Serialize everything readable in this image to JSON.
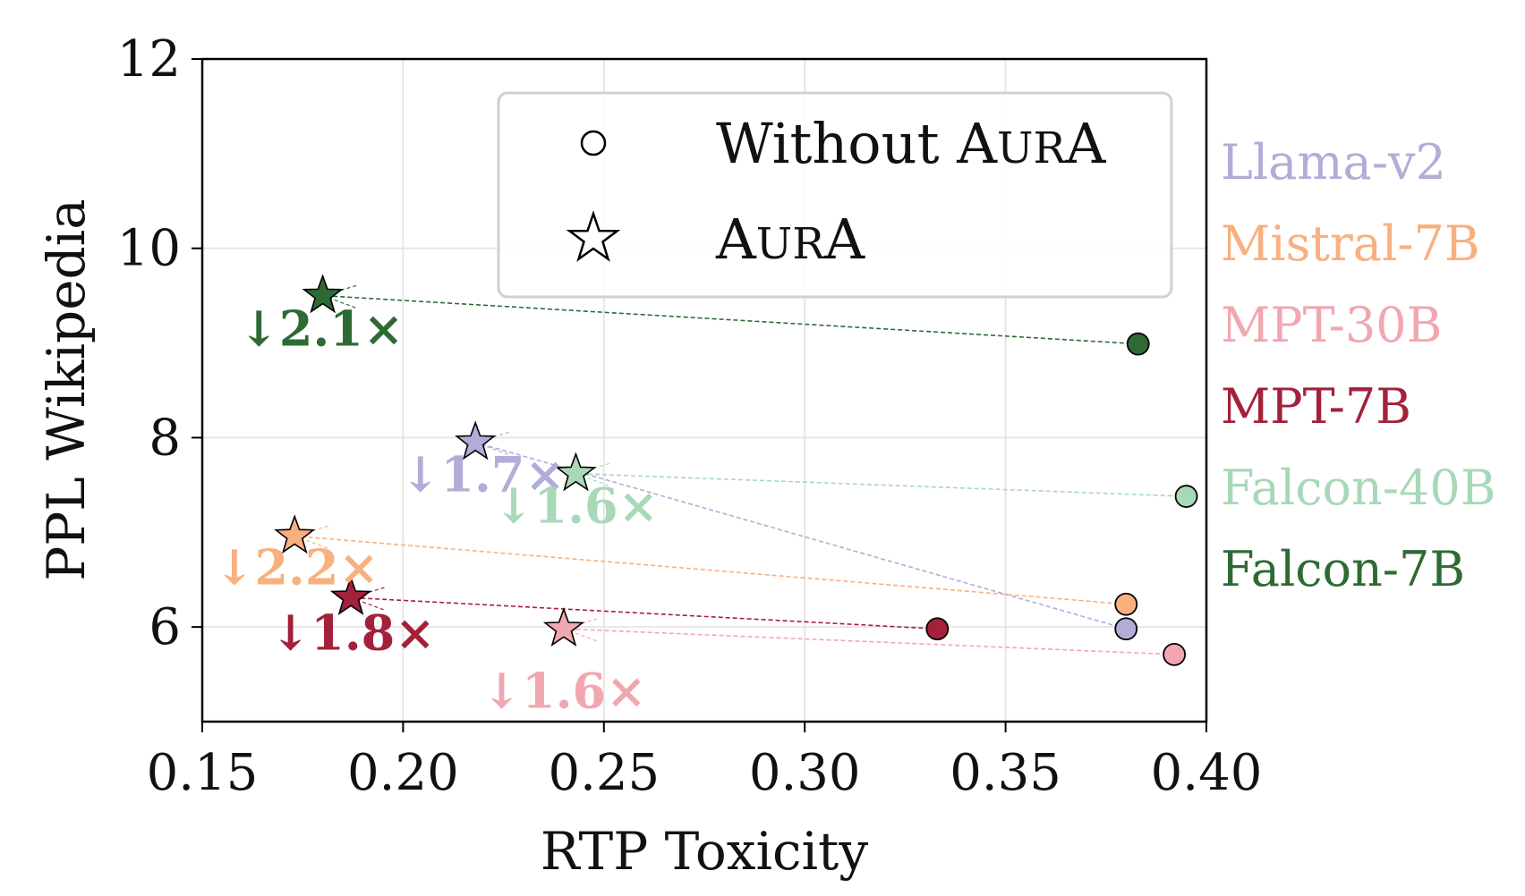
{
  "chart_data": {
    "type": "scatter",
    "xlabel": "RTP Toxicity",
    "ylabel": "PPL Wikipedia",
    "xlim": [
      0.15,
      0.4
    ],
    "ylim": [
      5.0,
      12.0
    ],
    "x_ticks": [
      "0.15",
      "0.20",
      "0.25",
      "0.30",
      "0.35",
      "0.40"
    ],
    "x_tick_values": [
      0.15,
      0.2,
      0.25,
      0.3,
      0.35,
      0.4
    ],
    "y_ticks": [
      "6",
      "8",
      "10",
      "12"
    ],
    "y_tick_values": [
      6,
      8,
      10,
      12
    ],
    "grid": true,
    "legend": {
      "placement": "top-right",
      "entries": [
        {
          "marker": "circle",
          "label_parts": [
            "Without ",
            "A",
            "UR",
            "A"
          ]
        },
        {
          "marker": "star",
          "label_parts": [
            "",
            "A",
            "UR",
            "A"
          ]
        }
      ]
    },
    "series": [
      {
        "name": "Llama-v2",
        "color": "#b2acd8",
        "without": [
          0.38,
          5.98
        ],
        "with": [
          0.218,
          7.95
        ],
        "ratio_label": "↓1.7×"
      },
      {
        "name": "Mistral-7B",
        "color": "#f8b07f",
        "without": [
          0.38,
          6.24
        ],
        "with": [
          0.173,
          6.96
        ],
        "ratio_label": "↓2.2×"
      },
      {
        "name": "MPT-30B",
        "color": "#f1a7b0",
        "without": [
          0.392,
          5.71
        ],
        "with": [
          0.24,
          5.98
        ],
        "ratio_label": "↓1.6×"
      },
      {
        "name": "MPT-7B",
        "color": "#a3213a",
        "without": [
          0.333,
          5.98
        ],
        "with": [
          0.187,
          6.31
        ],
        "ratio_label": "↓1.8×"
      },
      {
        "name": "Falcon-40B",
        "color": "#a8d8b8",
        "without": [
          0.395,
          7.38
        ],
        "with": [
          0.243,
          7.62
        ],
        "ratio_label": "↓1.6×"
      },
      {
        "name": "Falcon-7B",
        "color": "#2e6b34",
        "without": [
          0.383,
          8.99
        ],
        "with": [
          0.18,
          9.5
        ],
        "ratio_label": "↓2.1×"
      }
    ]
  }
}
